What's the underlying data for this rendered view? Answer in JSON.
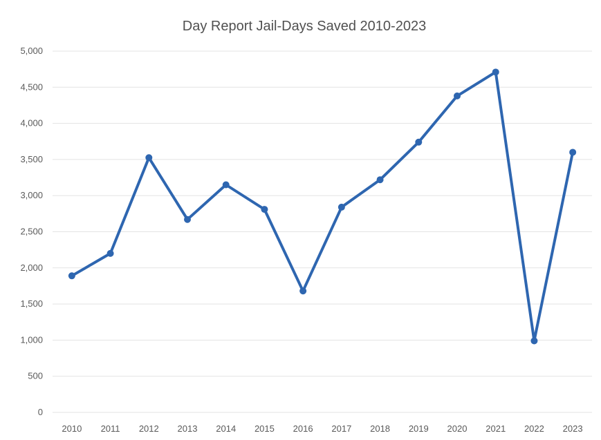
{
  "chart_data": {
    "type": "line",
    "title": "Day Report Jail-Days Saved 2010-2023",
    "xlabel": "",
    "ylabel": "",
    "categories": [
      "2010",
      "2011",
      "2012",
      "2013",
      "2014",
      "2015",
      "2016",
      "2017",
      "2018",
      "2019",
      "2020",
      "2021",
      "2022",
      "2023"
    ],
    "series": [
      {
        "values": [
          1890,
          2200,
          3525,
          2670,
          3150,
          2810,
          1680,
          2840,
          3220,
          3740,
          4380,
          4710,
          990,
          3600
        ]
      }
    ],
    "ylim": [
      0,
      5000
    ],
    "y_ticks": [
      0,
      500,
      1000,
      1500,
      2000,
      2500,
      3000,
      3500,
      4000,
      4500,
      5000
    ],
    "y_tick_labels": [
      "0",
      "500",
      "1,000",
      "1,500",
      "2,000",
      "2,500",
      "3,000",
      "3,500",
      "4,000",
      "4,500",
      "5,000"
    ],
    "grid": true,
    "legend": "none",
    "colors": {
      "series": "#2e66b0",
      "grid": "#e3e3e3",
      "text": "#595959",
      "title": "#505050"
    }
  }
}
